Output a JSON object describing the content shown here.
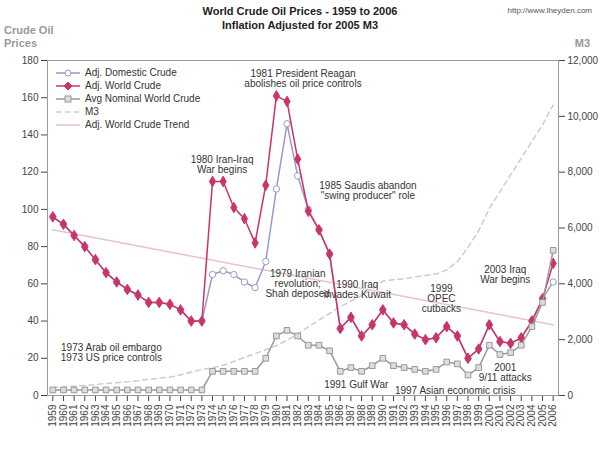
{
  "chart_data": {
    "type": "line",
    "title": "World Crude Oil Prices - 1959 to 2006",
    "subtitle": "Inflation Adjusted for 2005 M3",
    "source": "http://www.lheyden.com",
    "y_label": "Crude Oil Prices",
    "y2_label": "M3",
    "x": [
      1959,
      1960,
      1961,
      1962,
      1963,
      1964,
      1965,
      1966,
      1967,
      1968,
      1969,
      1970,
      1971,
      1972,
      1973,
      1974,
      1975,
      1976,
      1977,
      1978,
      1979,
      1980,
      1981,
      1982,
      1983,
      1984,
      1985,
      1986,
      1987,
      1988,
      1989,
      1990,
      1991,
      1992,
      1993,
      1994,
      1995,
      1996,
      1997,
      1998,
      1999,
      2000,
      2001,
      2002,
      2003,
      2004,
      2005,
      2006
    ],
    "xlim": [
      1958.5,
      2006.5
    ],
    "xticks": [
      1959,
      1960,
      1961,
      1962,
      1963,
      1964,
      1965,
      1966,
      1967,
      1968,
      1969,
      1970,
      1971,
      1972,
      1973,
      1974,
      1975,
      1976,
      1977,
      1978,
      1979,
      1980,
      1981,
      1982,
      1983,
      1984,
      1985,
      1986,
      1987,
      1988,
      1989,
      1990,
      1991,
      1992,
      1993,
      1994,
      1995,
      1996,
      1997,
      1998,
      1999,
      2000,
      2001,
      2002,
      2003,
      2004,
      2005,
      2006
    ],
    "ylim": [
      0,
      180
    ],
    "yticks": [
      0,
      20,
      40,
      60,
      80,
      100,
      120,
      140,
      160,
      180
    ],
    "y2lim": [
      0,
      12000
    ],
    "y2ticks": [
      0,
      {
        "value": 2000,
        "label": "2,000"
      },
      {
        "value": 4000,
        "label": "4,000"
      },
      {
        "value": 6000,
        "label": "6,000"
      },
      {
        "value": 8000,
        "label": "8,000"
      },
      {
        "value": 10000,
        "label": "10,000"
      },
      {
        "value": 12000,
        "label": "12,000"
      }
    ],
    "grid": false,
    "legend": "top-left",
    "series": [
      {
        "name": "Adj. Domestic Crude",
        "color": "#9999cc",
        "marker": "circle",
        "line_style": "solid",
        "values": [
          96,
          92,
          86,
          80,
          73,
          66,
          61,
          57,
          54,
          50,
          50,
          49,
          46,
          40,
          40,
          65,
          67,
          65,
          61,
          58,
          72,
          111,
          146,
          118,
          100,
          89,
          76,
          36,
          42,
          32,
          38,
          46,
          39,
          38,
          33,
          30,
          31,
          37,
          32,
          20,
          25,
          38,
          29,
          28,
          31,
          40,
          52,
          61
        ]
      },
      {
        "name": "Adj. World Crude",
        "color": "#cc3366",
        "marker": "diamond",
        "line_style": "solid",
        "values": [
          96,
          92,
          86,
          80,
          73,
          66,
          61,
          57,
          54,
          50,
          50,
          49,
          46,
          40,
          40,
          115,
          115,
          101,
          95,
          82,
          113,
          161,
          158,
          127,
          99,
          89,
          76,
          36,
          42,
          32,
          38,
          46,
          39,
          38,
          33,
          30,
          31,
          37,
          32,
          20,
          25,
          38,
          29,
          28,
          31,
          40,
          52,
          71
        ]
      },
      {
        "name": "Avg Nominal World Crude",
        "color": "#999999",
        "marker": "square",
        "line_style": "solid",
        "values": [
          3,
          3,
          3,
          3,
          3,
          3,
          3,
          3,
          3,
          3,
          3,
          3,
          3,
          3,
          3,
          13,
          13,
          13,
          13,
          13,
          20,
          32,
          35,
          32,
          27,
          27,
          24,
          13,
          15,
          13,
          16,
          20,
          16,
          15,
          14,
          13,
          14,
          18,
          17,
          11,
          15,
          27,
          22,
          23,
          27,
          37,
          50,
          78
        ]
      },
      {
        "name": "M3",
        "color": "#cccccc",
        "marker": "none",
        "line_style": "dashed",
        "axis": "y2",
        "values": [
          290,
          300,
          330,
          360,
          390,
          430,
          460,
          490,
          530,
          580,
          620,
          660,
          740,
          840,
          930,
          1000,
          1080,
          1220,
          1360,
          1500,
          1640,
          1790,
          1980,
          2200,
          2460,
          2700,
          2940,
          3180,
          3380,
          3580,
          3800,
          4100,
          4150,
          4180,
          4250,
          4300,
          4350,
          4500,
          4800,
          5300,
          5900,
          6700,
          7300,
          7900,
          8500,
          9100,
          9700,
          10400
        ]
      },
      {
        "name": "Adj. World Crude Trend",
        "color": "#e6c3cf",
        "marker": "none",
        "line_style": "solid",
        "x": [
          1959,
          2006
        ],
        "values": [
          89,
          38
        ]
      }
    ],
    "annotations": [
      {
        "text": "1973 Arab oil embargo\n1973 US price controls",
        "x": 1964.5,
        "y": 23
      },
      {
        "text": "1980 Iran-Iraq\nWar begins",
        "x": 1974.9,
        "y": 124
      },
      {
        "text": "1981 President Reagan\nabolishes oil price controls",
        "x": 1982.5,
        "y": 170
      },
      {
        "text": "1985 Saudis abandon\n\"swing producer\" role",
        "x": 1988.6,
        "y": 110
      },
      {
        "text": "1979 Iranian\nrevolution;\nShah deposed",
        "x": 1982.0,
        "y": 60
      },
      {
        "text": "1990 Iraq\ninvades Kuwait",
        "x": 1987.6,
        "y": 57
      },
      {
        "text": "1991 Gulf War",
        "x": 1987.5,
        "y": 6
      },
      {
        "text": "1999\nOPEC\ncutbacks",
        "x": 1995.5,
        "y": 52
      },
      {
        "text": "2003 Iraq\nWar begins",
        "x": 2001.5,
        "y": 65
      },
      {
        "text": "2001\n9/11 attacks",
        "x": 2001.5,
        "y": 12
      },
      {
        "text": "1997 Asian economic crisis",
        "x": 1996.8,
        "y": 2.5
      }
    ]
  }
}
